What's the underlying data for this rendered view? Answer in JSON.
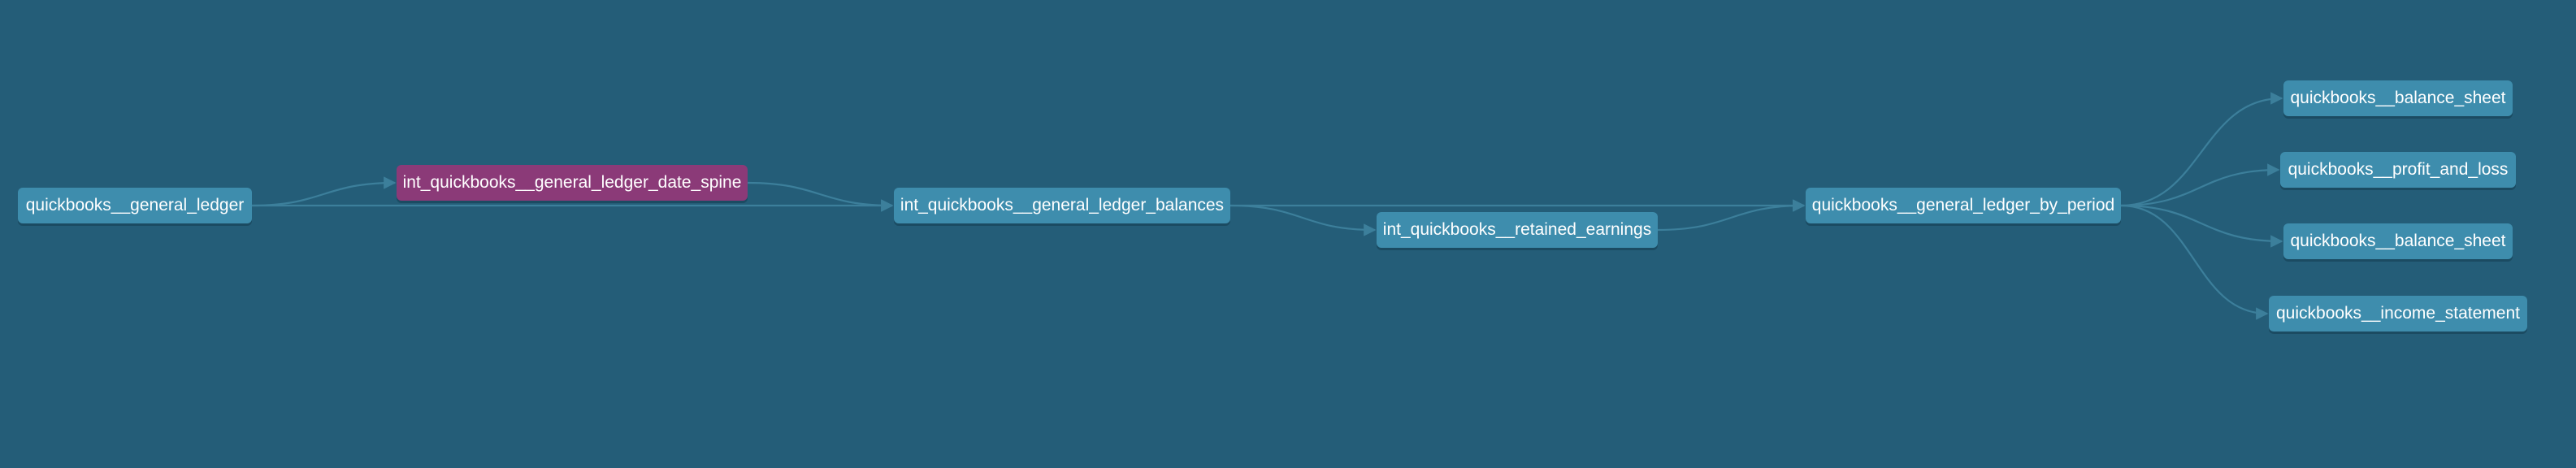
{
  "graph": {
    "colors": {
      "background": "#245d78",
      "node": "#3e8dad",
      "node_selected": "#8b3a78",
      "edge": "#3c7f9b"
    },
    "nodes": {
      "general_ledger": "quickbooks__general_ledger",
      "date_spine": "int_quickbooks__general_ledger_date_spine",
      "gl_balances": "int_quickbooks__general_ledger_balances",
      "retained_earnings": "int_quickbooks__retained_earnings",
      "gl_by_period": "quickbooks__general_ledger_by_period",
      "balance_sheet_1": "quickbooks__balance_sheet",
      "profit_and_loss": "quickbooks__profit_and_loss",
      "balance_sheet_2": "quickbooks__balance_sheet",
      "income_statement": "quickbooks__income_statement"
    },
    "edges": [
      [
        "general_ledger",
        "date_spine"
      ],
      [
        "general_ledger",
        "gl_balances"
      ],
      [
        "date_spine",
        "gl_balances"
      ],
      [
        "gl_balances",
        "retained_earnings"
      ],
      [
        "gl_balances",
        "gl_by_period"
      ],
      [
        "retained_earnings",
        "gl_by_period"
      ],
      [
        "gl_by_period",
        "balance_sheet_1"
      ],
      [
        "gl_by_period",
        "profit_and_loss"
      ],
      [
        "gl_by_period",
        "balance_sheet_2"
      ],
      [
        "gl_by_period",
        "income_statement"
      ]
    ]
  }
}
